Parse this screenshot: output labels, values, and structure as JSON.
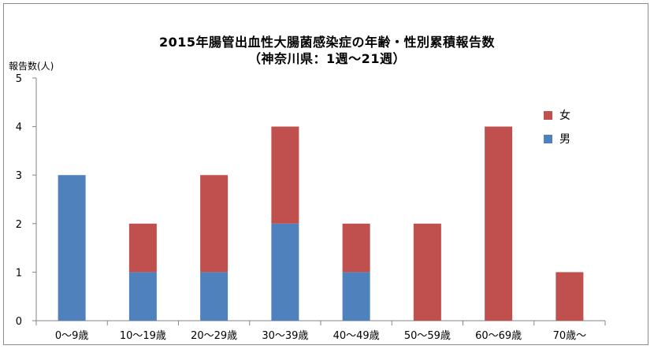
{
  "chart_data": {
    "type": "bar",
    "stacked": true,
    "title": "2015年腸管出血性大腸菌感染症の年齢・性別累積報告数",
    "subtitle": "（神奈川県：1週〜21週）",
    "ylabel": "報告数(人)",
    "xlabel": "",
    "ylim": [
      0,
      5
    ],
    "yticks": [
      0,
      1,
      2,
      3,
      4,
      5
    ],
    "grid": false,
    "legend_position": "right",
    "categories": [
      "0〜9歳",
      "10〜19歳",
      "20〜29歳",
      "30〜39歳",
      "40〜49歳",
      "50〜59歳",
      "60〜69歳",
      "70歳〜"
    ],
    "series": [
      {
        "name": "男",
        "color": "#4f81bd",
        "values": [
          3,
          1,
          1,
          2,
          1,
          0,
          0,
          0
        ]
      },
      {
        "name": "女",
        "color": "#c0504d",
        "values": [
          0,
          1,
          2,
          2,
          1,
          2,
          4,
          1
        ]
      }
    ],
    "legend_order": [
      "女",
      "男"
    ]
  }
}
